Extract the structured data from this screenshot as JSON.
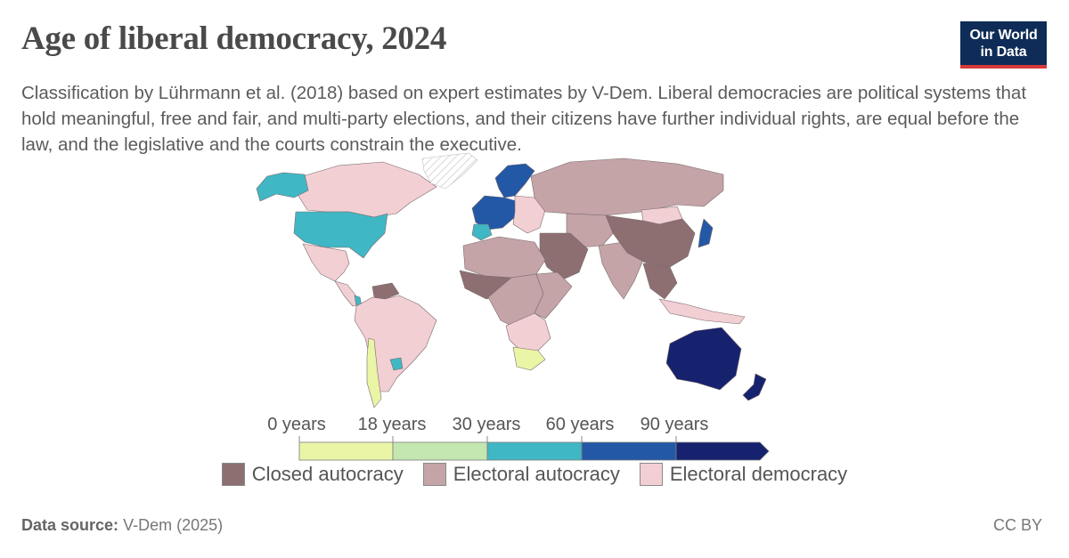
{
  "header": {
    "title": "Age of liberal democracy, 2024",
    "subtitle": "Classification by Lührmann et al. (2018) based on expert estimates by V-Dem. Liberal democracies are political systems that hold meaningful, free and fair, and multi-party elections, and their citizens have further individual rights, are equal before the law, and the legislative and the courts constrain the executive."
  },
  "logo": {
    "line1": "Our World",
    "line2": "in Data"
  },
  "legend": {
    "scale_ticks": [
      "0 years",
      "18 years",
      "30 years",
      "60 years",
      "90 years"
    ],
    "scale_bins": [
      {
        "from": 0,
        "to": 18,
        "color": "#eaf5a6"
      },
      {
        "from": 18,
        "to": 30,
        "color": "#c4e6b0"
      },
      {
        "from": 30,
        "to": 60,
        "color": "#40b7c4"
      },
      {
        "from": 60,
        "to": 90,
        "color": "#2358a6"
      },
      {
        "from": 90,
        "to": null,
        "color": "#16226e"
      }
    ],
    "categories": [
      {
        "label": "Closed autocracy",
        "color": "#8d6f71"
      },
      {
        "label": "Electoral autocracy",
        "color": "#c4a4a7"
      },
      {
        "label": "Electoral democracy",
        "color": "#f2cfd3"
      }
    ]
  },
  "map": {
    "region_colors": {
      "canada": "#f2cfd3",
      "alaska": "#40b7c4",
      "usa": "#40b7c4",
      "mexico": "#f2cfd3",
      "central_america": "#f2cfd3",
      "costa_rica": "#40b7c4",
      "venezuela": "#8d6f71",
      "south_america": "#f2cfd3",
      "chile": "#eaf5a6",
      "uruguay": "#40b7c4",
      "greenland": "#ffffff",
      "scandinavia": "#2358a6",
      "western_europe": "#2358a6",
      "iberia": "#40b7c4",
      "eastern_europe": "#f2cfd3",
      "russia": "#c4a4a7",
      "middle_east": "#8d6f71",
      "north_africa": "#c4a4a7",
      "west_africa": "#8d6f71",
      "central_africa": "#c4a4a7",
      "east_africa": "#c4a4a7",
      "southern_africa": "#f2cfd3",
      "south_africa": "#eaf5a6",
      "central_asia": "#c4a4a7",
      "india": "#c4a4a7",
      "china": "#8d6f71",
      "mongolia": "#f2cfd3",
      "southeast_asia": "#8d6f71",
      "indonesia": "#f2cfd3",
      "japan": "#2358a6",
      "australia": "#16226e",
      "new_zealand": "#16226e"
    }
  },
  "footer": {
    "source_label": "Data source:",
    "source_value": "V-Dem (2025)",
    "license": "CC BY"
  }
}
